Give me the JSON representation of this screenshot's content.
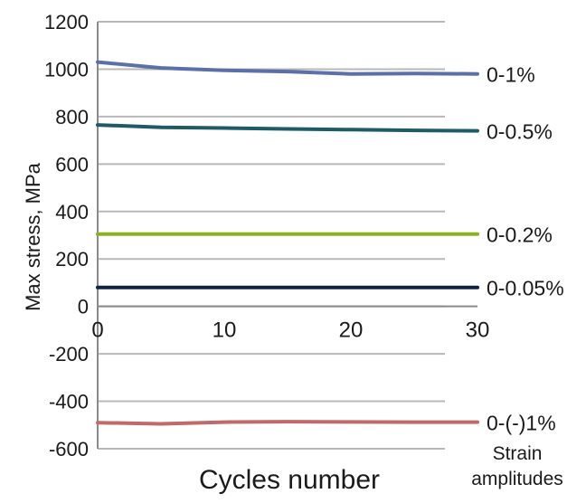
{
  "chart_data": {
    "type": "line",
    "title": "",
    "xlabel": "Cycles number",
    "ylabel": "Max stress, MPa",
    "legend_title": "Strain amplitudes",
    "xlim": [
      0,
      30
    ],
    "ylim": [
      -600,
      1200
    ],
    "x_ticks": [
      "0",
      "10",
      "20",
      "30"
    ],
    "y_ticks": [
      "1200",
      "1000",
      "800",
      "600",
      "400",
      "200",
      "0",
      "-200",
      "-400",
      "-600"
    ],
    "grid": "horizontal",
    "legend_placement": "right, labels at line ends",
    "x": [
      0,
      5,
      10,
      15,
      20,
      25,
      30
    ],
    "series": [
      {
        "name": "0-1%",
        "color": "#5b6fa8",
        "values": [
          1030,
          1005,
          995,
          990,
          980,
          982,
          980
        ]
      },
      {
        "name": "0-0.5%",
        "color": "#1f5a66",
        "values": [
          765,
          755,
          752,
          748,
          745,
          742,
          740
        ]
      },
      {
        "name": "0-0.2%",
        "color": "#8ab31f",
        "values": [
          305,
          305,
          305,
          305,
          305,
          305,
          305
        ]
      },
      {
        "name": "0-0.05%",
        "color": "#10233f",
        "values": [
          80,
          80,
          80,
          80,
          80,
          80,
          80
        ]
      },
      {
        "name": "0-(-)1%",
        "color": "#c06a6a",
        "values": [
          -490,
          -495,
          -488,
          -486,
          -487,
          -488,
          -488
        ]
      }
    ]
  }
}
